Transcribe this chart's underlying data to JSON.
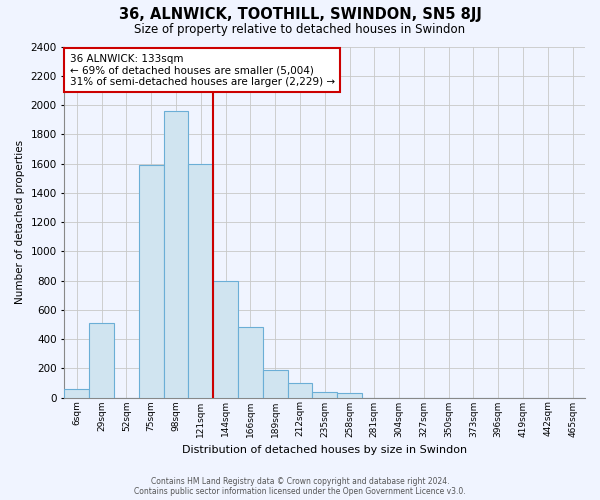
{
  "title": "36, ALNWICK, TOOTHILL, SWINDON, SN5 8JJ",
  "subtitle": "Size of property relative to detached houses in Swindon",
  "xlabel": "Distribution of detached houses by size in Swindon",
  "ylabel": "Number of detached properties",
  "bar_color": "#d0e4f0",
  "bar_edge_color": "#6baed6",
  "background_color": "#f0f4ff",
  "grid_color": "#c8c8c8",
  "annotation_box_color": "#cc0000",
  "vline_color": "#cc0000",
  "bin_labels": [
    "6sqm",
    "29sqm",
    "52sqm",
    "75sqm",
    "98sqm",
    "121sqm",
    "144sqm",
    "166sqm",
    "189sqm",
    "212sqm",
    "235sqm",
    "258sqm",
    "281sqm",
    "304sqm",
    "327sqm",
    "350sqm",
    "373sqm",
    "396sqm",
    "419sqm",
    "442sqm",
    "465sqm"
  ],
  "bar_heights": [
    55,
    510,
    0,
    1590,
    1960,
    1600,
    800,
    480,
    190,
    100,
    40,
    30,
    0,
    0,
    0,
    0,
    0,
    0,
    0,
    0,
    0
  ],
  "ylim": [
    0,
    2400
  ],
  "yticks": [
    0,
    200,
    400,
    600,
    800,
    1000,
    1200,
    1400,
    1600,
    1800,
    2000,
    2200,
    2400
  ],
  "property_label": "36 ALNWICK: 133sqm",
  "annotation_line1": "← 69% of detached houses are smaller (5,004)",
  "annotation_line2": "31% of semi-detached houses are larger (2,229) →",
  "vline_x": 5.5,
  "footer1": "Contains HM Land Registry data © Crown copyright and database right 2024.",
  "footer2": "Contains public sector information licensed under the Open Government Licence v3.0."
}
